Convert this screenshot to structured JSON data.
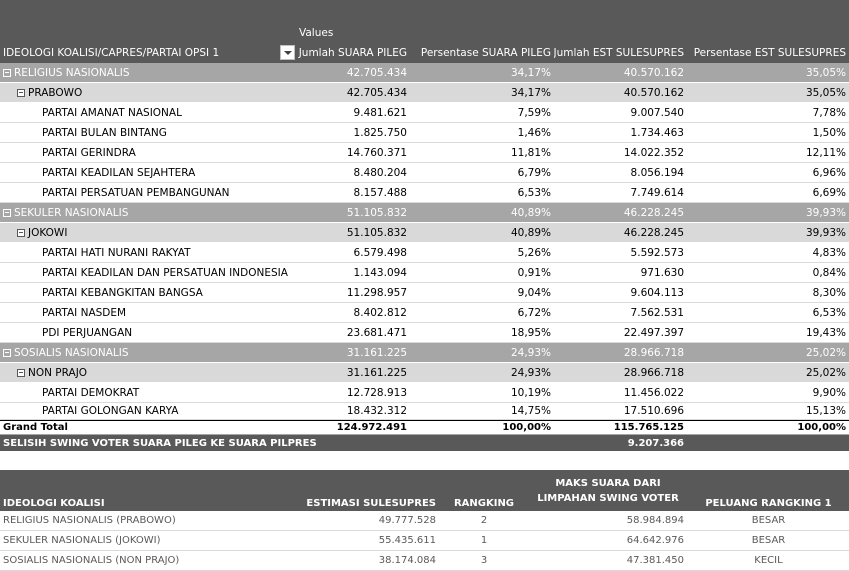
{
  "pivot": {
    "values_label": "Values",
    "row_field": "IDEOLOGI KOALISI/CAPRES/PARTAI OPSI 1",
    "columns": [
      "Jumlah SUARA PILEG",
      "Persentase SUARA PILEG",
      "Jumlah EST SULESUPRES",
      "Persentase EST SULESUPRES"
    ],
    "rows": [
      {
        "level": 1,
        "label": "RELIGIUS NASIONALIS",
        "v": [
          "42.705.434",
          "34,17%",
          "40.570.162",
          "35,05%"
        ]
      },
      {
        "level": 2,
        "label": "PRABOWO",
        "v": [
          "42.705.434",
          "34,17%",
          "40.570.162",
          "35,05%"
        ]
      },
      {
        "level": 3,
        "label": "PARTAI AMANAT NASIONAL",
        "v": [
          "9.481.621",
          "7,59%",
          "9.007.540",
          "7,78%"
        ]
      },
      {
        "level": 3,
        "label": "PARTAI BULAN BINTANG",
        "v": [
          "1.825.750",
          "1,46%",
          "1.734.463",
          "1,50%"
        ]
      },
      {
        "level": 3,
        "label": "PARTAI GERINDRA",
        "v": [
          "14.760.371",
          "11,81%",
          "14.022.352",
          "12,11%"
        ]
      },
      {
        "level": 3,
        "label": "PARTAI KEADILAN SEJAHTERA",
        "v": [
          "8.480.204",
          "6,79%",
          "8.056.194",
          "6,96%"
        ]
      },
      {
        "level": 3,
        "label": "PARTAI PERSATUAN PEMBANGUNAN",
        "v": [
          "8.157.488",
          "6,53%",
          "7.749.614",
          "6,69%"
        ]
      },
      {
        "level": 1,
        "label": "SEKULER NASIONALIS",
        "v": [
          "51.105.832",
          "40,89%",
          "46.228.245",
          "39,93%"
        ]
      },
      {
        "level": 2,
        "label": "JOKOWI",
        "v": [
          "51.105.832",
          "40,89%",
          "46.228.245",
          "39,93%"
        ]
      },
      {
        "level": 3,
        "label": "PARTAI HATI NURANI RAKYAT",
        "v": [
          "6.579.498",
          "5,26%",
          "5.592.573",
          "4,83%"
        ]
      },
      {
        "level": 3,
        "label": "PARTAI KEADILAN DAN PERSATUAN INDONESIA",
        "v": [
          "1.143.094",
          "0,91%",
          "971.630",
          "0,84%"
        ]
      },
      {
        "level": 3,
        "label": "PARTAI KEBANGKITAN BANGSA",
        "v": [
          "11.298.957",
          "9,04%",
          "9.604.113",
          "8,30%"
        ]
      },
      {
        "level": 3,
        "label": "PARTAI NASDEM",
        "v": [
          "8.402.812",
          "6,72%",
          "7.562.531",
          "6,53%"
        ]
      },
      {
        "level": 3,
        "label": "PDI PERJUANGAN",
        "v": [
          "23.681.471",
          "18,95%",
          "22.497.397",
          "19,43%"
        ]
      },
      {
        "level": 1,
        "label": "SOSIALIS NASIONALIS",
        "v": [
          "31.161.225",
          "24,93%",
          "28.966.718",
          "25,02%"
        ]
      },
      {
        "level": 2,
        "label": "NON PRAJO",
        "v": [
          "31.161.225",
          "24,93%",
          "28.966.718",
          "25,02%"
        ]
      },
      {
        "level": 3,
        "label": "PARTAI DEMOKRAT",
        "v": [
          "12.728.913",
          "10,19%",
          "11.456.022",
          "9,90%"
        ]
      },
      {
        "level": 3,
        "label": "PARTAI GOLONGAN KARYA",
        "v": [
          "18.432.312",
          "14,75%",
          "17.510.696",
          "15,13%"
        ]
      }
    ],
    "grand_total": {
      "label": "Grand Total",
      "v": [
        "124.972.491",
        "100,00%",
        "115.765.125",
        "100,00%"
      ]
    },
    "swing": {
      "label": "SELISIH SWING VOTER SUARA PILEG KE SUARA PILPRES",
      "value": "9.207.366"
    }
  },
  "summary": {
    "headers": [
      "IDEOLOGI KOALISI",
      "ESTIMASI SULESUPRES",
      "RANGKING",
      "MAKS SUARA DARI LIMPAHAN SWING VOTER",
      "PELUANG RANGKING 1"
    ],
    "rows": [
      [
        "RELIGIUS NASIONALIS (PRABOWO)",
        "49.777.528",
        "2",
        "58.984.894",
        "BESAR"
      ],
      [
        "SEKULER NASIONALIS (JOKOWI)",
        "55.435.611",
        "1",
        "64.642.976",
        "BESAR"
      ],
      [
        "SOSIALIS NASIONALIS (NON PRAJO)",
        "38.174.084",
        "3",
        "47.381.450",
        "KECIL"
      ]
    ]
  }
}
